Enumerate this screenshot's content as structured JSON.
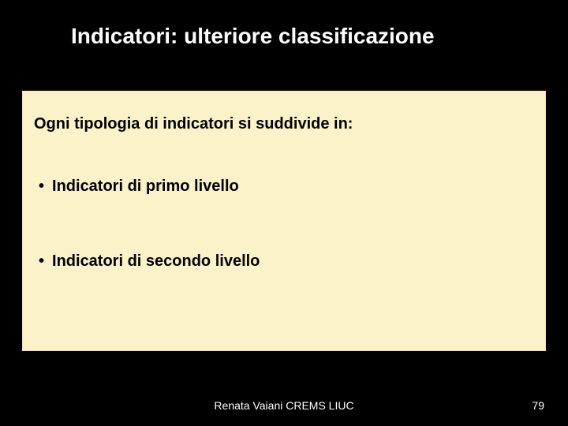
{
  "slide": {
    "title": "Indicatori: ulteriore classificazione",
    "title_color": "#ffffff",
    "title_fontsize": 28,
    "background_color": "#000000"
  },
  "content": {
    "box_background": "#fbf2ca",
    "box_border": "#f5deb3",
    "intro": "Ogni tipologia di indicatori si suddivide in:",
    "bullets": [
      "Indicatori di primo livello",
      "Indicatori di secondo livello"
    ],
    "text_color": "#000000",
    "text_fontsize": 20,
    "bullet_marker": "•"
  },
  "footer": {
    "author": "Renata Vaiani CREMS LIUC",
    "page_number": "79",
    "color": "#ffffff",
    "fontsize": 14
  }
}
